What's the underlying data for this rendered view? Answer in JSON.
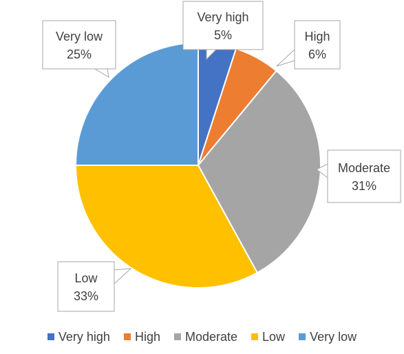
{
  "chart_data": {
    "type": "pie",
    "title": "",
    "categories": [
      "Very high",
      "High",
      "Moderate",
      "Low",
      "Very low"
    ],
    "values": [
      5,
      6,
      31,
      33,
      25
    ],
    "value_labels": [
      "5%",
      "6%",
      "31%",
      "33%",
      "25%"
    ],
    "colors": [
      "#4472c4",
      "#ed7d31",
      "#a5a5a5",
      "#ffc000",
      "#5b9bd5"
    ],
    "start_angle_deg": 0,
    "direction": "clockwise",
    "legend_position": "bottom"
  }
}
